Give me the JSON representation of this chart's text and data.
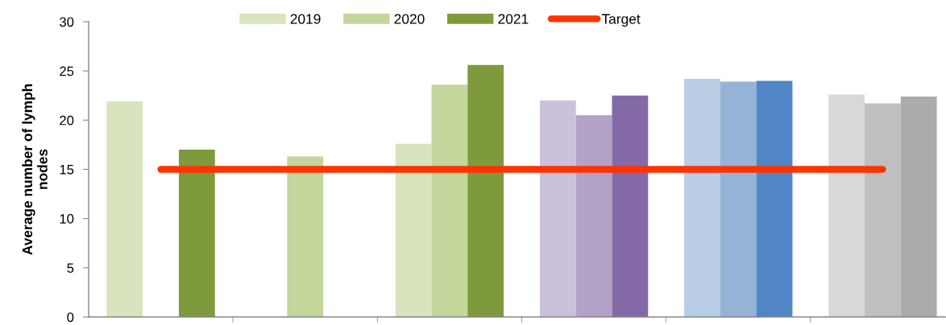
{
  "chart_data": {
    "type": "bar",
    "ylabel": "Average number of lymph\nnodes",
    "categories": [
      null,
      null,
      null,
      null,
      null,
      null
    ],
    "series": [
      {
        "name": "2019",
        "color": "#d7e4bd",
        "colors": [
          "#d7e4bd",
          null,
          "#d7e4bd",
          "#ccc1da",
          "#b9cde5",
          "#d9d9d9"
        ],
        "values": [
          21.9,
          null,
          17.6,
          22.0,
          24.2,
          22.6
        ]
      },
      {
        "name": "2020",
        "color": "#c3d69b",
        "colors": [
          null,
          "#c3d69b",
          "#c3d69b",
          "#b3a2c7",
          "#95b3d7",
          "#bfbfbf"
        ],
        "values": [
          null,
          16.3,
          23.6,
          20.5,
          23.9,
          21.7
        ]
      },
      {
        "name": "2021",
        "color": "#7f9a3d",
        "colors": [
          "#7f9a3d",
          null,
          "#7f9a3d",
          "#8469a7",
          "#5086c6",
          "#ababab"
        ],
        "values": [
          17.0,
          null,
          25.6,
          22.5,
          24.0,
          22.4
        ]
      },
      {
        "name": "Target",
        "type": "line",
        "color": "#ff3300",
        "values": [
          15,
          15,
          15,
          15,
          15,
          15
        ],
        "line_style": "solid",
        "marker": "none"
      }
    ],
    "ylim": [
      0,
      30
    ],
    "yticks": [
      0,
      5,
      10,
      15,
      20,
      25,
      30
    ],
    "legend": "top",
    "tick_labels": "y"
  }
}
